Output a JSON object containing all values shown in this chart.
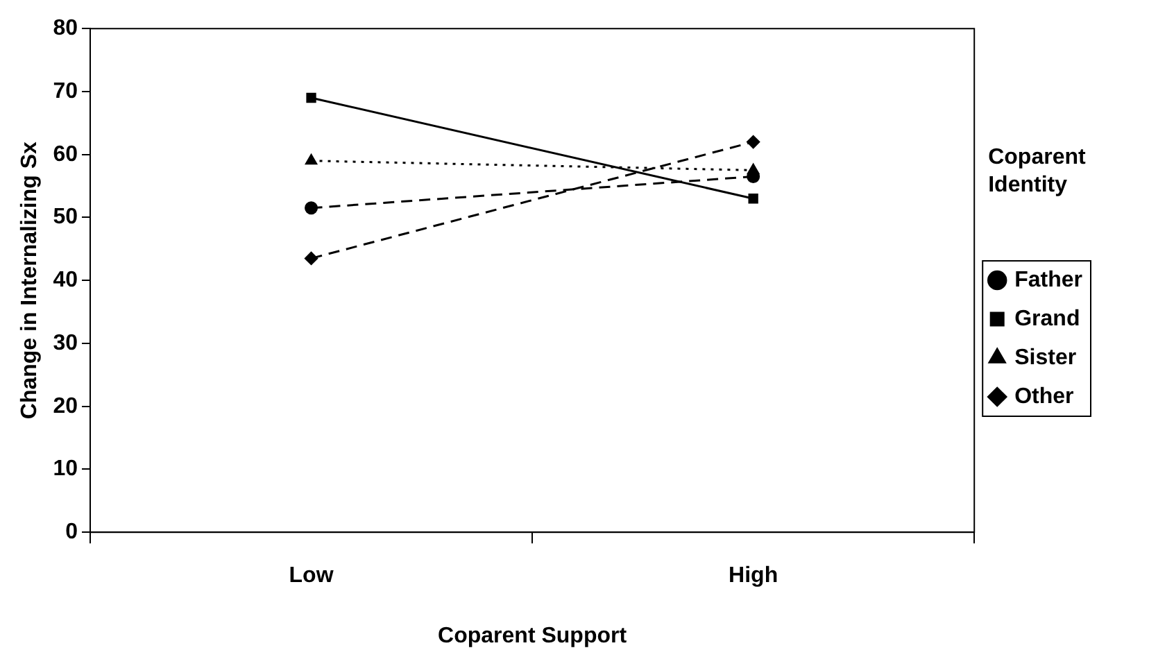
{
  "chart_data": {
    "type": "line",
    "xlabel": "Coparent Support",
    "ylabel": "Change in Internalizing Sx",
    "legend_title": "Coparent Identity",
    "categories": [
      "Low",
      "High"
    ],
    "series": [
      {
        "name": "Father",
        "color": "#000000",
        "values": [
          51.5,
          56.5
        ],
        "line_style": "dashed",
        "marker": "circle"
      },
      {
        "name": "Grand",
        "color": "#000000",
        "values": [
          69,
          53
        ],
        "line_style": "solid",
        "marker": "square"
      },
      {
        "name": "Sister",
        "color": "#000000",
        "values": [
          59,
          57.5
        ],
        "line_style": "dotted",
        "marker": "triangle"
      },
      {
        "name": "Other",
        "color": "#000000",
        "values": [
          43.5,
          62
        ],
        "line_style": "dashed",
        "marker": "diamond"
      }
    ],
    "ylim": [
      0,
      80
    ],
    "yticks": [
      0,
      10,
      20,
      30,
      40,
      50,
      60,
      70,
      80
    ],
    "grid": false,
    "legend": "right"
  }
}
